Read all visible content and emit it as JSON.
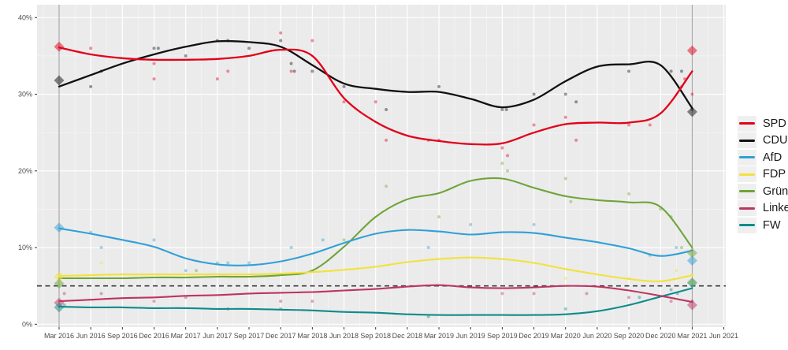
{
  "page": {
    "background": "#ffffff"
  },
  "chart_data": {
    "type": "line",
    "title": "",
    "xlabel": "",
    "ylabel": "",
    "grid": true,
    "panel_background": "#ebebeb",
    "major_grid_color": "#ffffff",
    "minor_grid_color": "#f4f4f4",
    "axis_text_color": "#4d4d4d",
    "legend_position": "right",
    "x_tick_labels": [
      "Mar 2016",
      "Jun 2016",
      "Sep 2016",
      "Dec 2016",
      "Mar 2017",
      "Jun 2017",
      "Sep 2017",
      "Dec 2017",
      "Mar 2018",
      "Jun 2018",
      "Sep 2018",
      "Dec 2018",
      "Mar 2019",
      "Jun 2019",
      "Sep 2019",
      "Dec 2019",
      "Mar 2020",
      "Jun 2020",
      "Sep 2020",
      "Dec 2020",
      "Mar 2021",
      "Jun 2021"
    ],
    "y_tick_labels": [
      "0%",
      "10%",
      "20%",
      "30%",
      "40%"
    ],
    "y_tick_values": [
      0,
      10,
      20,
      30,
      40
    ],
    "y_minor_values": [
      5,
      15,
      25,
      35
    ],
    "ylim": [
      0,
      42
    ],
    "xlim_months": [
      -2,
      63
    ],
    "threshold": {
      "value": 5,
      "meaning": "5% electoral threshold",
      "color": "#3c3c3c",
      "dashed": true
    },
    "election_date_lines": {
      "months": [
        0,
        60
      ],
      "color": "#9a9a9a"
    },
    "series_months": [
      0,
      3,
      6,
      9,
      12,
      15,
      18,
      21,
      24,
      27,
      30,
      33,
      36,
      39,
      42,
      45,
      48,
      51,
      54,
      57,
      60
    ],
    "series": [
      {
        "name": "SPD",
        "color": "#e2001a",
        "width": 2.3,
        "values": [
          36.1,
          35.2,
          34.7,
          34.5,
          34.5,
          34.6,
          35.0,
          35.8,
          35.0,
          29.5,
          26.4,
          24.6,
          23.9,
          23.5,
          23.6,
          25.0,
          26.1,
          26.3,
          26.3,
          27.5,
          33.0
        ]
      },
      {
        "name": "CDU",
        "color": "#111111",
        "width": 2.3,
        "values": [
          31.0,
          32.5,
          34.0,
          35.2,
          36.2,
          36.9,
          36.8,
          36.2,
          33.8,
          31.4,
          30.7,
          30.3,
          30.3,
          29.4,
          28.3,
          29.3,
          31.7,
          33.6,
          33.9,
          33.8,
          28.2
        ]
      },
      {
        "name": "AfD",
        "color": "#2fa0d8",
        "width": 2.1,
        "values": [
          12.5,
          11.8,
          11.0,
          10.1,
          8.6,
          7.8,
          7.7,
          8.2,
          9.2,
          10.6,
          11.8,
          12.3,
          12.1,
          11.7,
          12.0,
          11.9,
          11.3,
          10.7,
          9.9,
          8.9,
          9.6
        ]
      },
      {
        "name": "FDP",
        "color": "#f2e23c",
        "width": 2.1,
        "values": [
          6.3,
          6.4,
          6.5,
          6.5,
          6.5,
          6.5,
          6.5,
          6.6,
          6.8,
          7.1,
          7.5,
          8.1,
          8.5,
          8.7,
          8.5,
          8.0,
          7.2,
          6.5,
          5.9,
          5.6,
          6.4
        ]
      },
      {
        "name": "Grüne",
        "color": "#6fa43a",
        "width": 2.1,
        "values": [
          6.0,
          6.0,
          6.0,
          6.1,
          6.1,
          6.2,
          6.2,
          6.4,
          7.0,
          10.1,
          14.0,
          16.3,
          17.1,
          18.7,
          19.0,
          17.8,
          16.7,
          16.2,
          15.9,
          15.3,
          10.0
        ]
      },
      {
        "name": "Linke",
        "color": "#bd3462",
        "width": 2.1,
        "values": [
          3.0,
          3.2,
          3.4,
          3.5,
          3.7,
          3.8,
          4.0,
          4.1,
          4.2,
          4.4,
          4.6,
          4.9,
          5.1,
          4.8,
          4.7,
          4.8,
          5.0,
          4.9,
          4.4,
          3.7,
          2.9
        ]
      },
      {
        "name": "FW",
        "color": "#0f8b8b",
        "width": 2.1,
        "values": [
          2.3,
          2.2,
          2.2,
          2.1,
          2.1,
          2.0,
          2.0,
          1.9,
          1.8,
          1.6,
          1.5,
          1.3,
          1.2,
          1.2,
          1.2,
          1.2,
          1.3,
          1.7,
          2.5,
          3.6,
          4.7
        ]
      }
    ],
    "elections": [
      {
        "label": "Landtagswahl Mar 2016",
        "month": 0,
        "results": {
          "SPD": 36.2,
          "CDU": 31.8,
          "AfD": 12.6,
          "FDP": 6.2,
          "Grüne": 5.3,
          "Linke": 2.8,
          "FW": 2.2
        }
      },
      {
        "label": "Landtagswahl Mar 2021",
        "month": 60,
        "results": {
          "SPD": 35.7,
          "CDU": 27.7,
          "AfD": 8.3,
          "FDP": 5.5,
          "Grüne": 9.3,
          "Linke": 2.5,
          "FW": 5.4
        }
      }
    ],
    "polls": [
      {
        "party": "SPD",
        "month": 3,
        "value": 36
      },
      {
        "party": "SPD",
        "month": 9,
        "value": 34
      },
      {
        "party": "SPD",
        "month": 9,
        "value": 32
      },
      {
        "party": "SPD",
        "month": 15,
        "value": 32
      },
      {
        "party": "SPD",
        "month": 16,
        "value": 33
      },
      {
        "party": "SPD",
        "month": 21,
        "value": 38
      },
      {
        "party": "SPD",
        "month": 22,
        "value": 33
      },
      {
        "party": "SPD",
        "month": 24,
        "value": 37
      },
      {
        "party": "SPD",
        "month": 27,
        "value": 29
      },
      {
        "party": "SPD",
        "month": 30,
        "value": 29
      },
      {
        "party": "SPD",
        "month": 31,
        "value": 24
      },
      {
        "party": "SPD",
        "month": 35,
        "value": 24
      },
      {
        "party": "SPD",
        "month": 36,
        "value": 24
      },
      {
        "party": "SPD",
        "month": 42,
        "value": 23
      },
      {
        "party": "SPD",
        "month": 42.5,
        "value": 22
      },
      {
        "party": "SPD",
        "month": 45,
        "value": 26
      },
      {
        "party": "SPD",
        "month": 48,
        "value": 27
      },
      {
        "party": "SPD",
        "month": 49,
        "value": 24
      },
      {
        "party": "SPD",
        "month": 54,
        "value": 26
      },
      {
        "party": "SPD",
        "month": 56,
        "value": 26
      },
      {
        "party": "SPD",
        "month": 59,
        "value": 31
      },
      {
        "party": "SPD",
        "month": 59.3,
        "value": 32
      },
      {
        "party": "SPD",
        "month": 60,
        "value": 30
      },
      {
        "party": "CDU",
        "month": 3,
        "value": 31
      },
      {
        "party": "CDU",
        "month": 4,
        "value": 33
      },
      {
        "party": "CDU",
        "month": 9,
        "value": 36
      },
      {
        "party": "CDU",
        "month": 9.4,
        "value": 36
      },
      {
        "party": "CDU",
        "month": 12,
        "value": 35
      },
      {
        "party": "CDU",
        "month": 15,
        "value": 37
      },
      {
        "party": "CDU",
        "month": 16,
        "value": 37
      },
      {
        "party": "CDU",
        "month": 18,
        "value": 36
      },
      {
        "party": "CDU",
        "month": 21,
        "value": 37
      },
      {
        "party": "CDU",
        "month": 22,
        "value": 34
      },
      {
        "party": "CDU",
        "month": 22.3,
        "value": 33
      },
      {
        "party": "CDU",
        "month": 24,
        "value": 33
      },
      {
        "party": "CDU",
        "month": 27,
        "value": 31
      },
      {
        "party": "CDU",
        "month": 31,
        "value": 28
      },
      {
        "party": "CDU",
        "month": 36,
        "value": 31
      },
      {
        "party": "CDU",
        "month": 42,
        "value": 28
      },
      {
        "party": "CDU",
        "month": 42.4,
        "value": 28
      },
      {
        "party": "CDU",
        "month": 45,
        "value": 30
      },
      {
        "party": "CDU",
        "month": 48,
        "value": 30
      },
      {
        "party": "CDU",
        "month": 49,
        "value": 29
      },
      {
        "party": "CDU",
        "month": 54,
        "value": 33
      },
      {
        "party": "CDU",
        "month": 58,
        "value": 33
      },
      {
        "party": "CDU",
        "month": 59,
        "value": 33
      },
      {
        "party": "CDU",
        "month": 60,
        "value": 28
      },
      {
        "party": "AfD",
        "month": 3,
        "value": 12
      },
      {
        "party": "AfD",
        "month": 4,
        "value": 10
      },
      {
        "party": "AfD",
        "month": 9,
        "value": 11
      },
      {
        "party": "AfD",
        "month": 12,
        "value": 7
      },
      {
        "party": "AfD",
        "month": 15,
        "value": 8
      },
      {
        "party": "AfD",
        "month": 16,
        "value": 8
      },
      {
        "party": "AfD",
        "month": 18,
        "value": 8
      },
      {
        "party": "AfD",
        "month": 22,
        "value": 10
      },
      {
        "party": "AfD",
        "month": 25,
        "value": 11
      },
      {
        "party": "AfD",
        "month": 35,
        "value": 10
      },
      {
        "party": "AfD",
        "month": 39,
        "value": 13
      },
      {
        "party": "AfD",
        "month": 45,
        "value": 13
      },
      {
        "party": "AfD",
        "month": 56,
        "value": 9
      },
      {
        "party": "AfD",
        "month": 58.5,
        "value": 10
      },
      {
        "party": "FDP",
        "month": 4,
        "value": 8
      },
      {
        "party": "FDP",
        "month": 48,
        "value": 6
      },
      {
        "party": "FDP",
        "month": 54,
        "value": 6
      },
      {
        "party": "FDP",
        "month": 58.5,
        "value": 7
      },
      {
        "party": "FDP",
        "month": 60,
        "value": 6.5
      },
      {
        "party": "Grüne",
        "month": 13,
        "value": 7
      },
      {
        "party": "Grüne",
        "month": 27,
        "value": 11
      },
      {
        "party": "Grüne",
        "month": 31,
        "value": 18
      },
      {
        "party": "Grüne",
        "month": 36,
        "value": 14
      },
      {
        "party": "Grüne",
        "month": 42,
        "value": 21
      },
      {
        "party": "Grüne",
        "month": 42.5,
        "value": 20
      },
      {
        "party": "Grüne",
        "month": 48,
        "value": 19
      },
      {
        "party": "Grüne",
        "month": 48.5,
        "value": 16
      },
      {
        "party": "Grüne",
        "month": 54,
        "value": 17
      },
      {
        "party": "Grüne",
        "month": 57,
        "value": 15
      },
      {
        "party": "Grüne",
        "month": 58,
        "value": 14
      },
      {
        "party": "Grüne",
        "month": 59,
        "value": 10
      },
      {
        "party": "Linke",
        "month": 0.5,
        "value": 4
      },
      {
        "party": "Linke",
        "month": 4,
        "value": 4
      },
      {
        "party": "Linke",
        "month": 9,
        "value": 3
      },
      {
        "party": "Linke",
        "month": 12,
        "value": 3.5
      },
      {
        "party": "Linke",
        "month": 21,
        "value": 3
      },
      {
        "party": "Linke",
        "month": 24,
        "value": 3
      },
      {
        "party": "Linke",
        "month": 42,
        "value": 4
      },
      {
        "party": "Linke",
        "month": 45,
        "value": 4
      },
      {
        "party": "Linke",
        "month": 50,
        "value": 4
      },
      {
        "party": "Linke",
        "month": 54,
        "value": 3.5
      },
      {
        "party": "Linke",
        "month": 58,
        "value": 3
      },
      {
        "party": "Linke",
        "month": 60,
        "value": 3
      },
      {
        "party": "FW",
        "month": 0.5,
        "value": 2.5
      },
      {
        "party": "FW",
        "month": 16,
        "value": 2
      },
      {
        "party": "FW",
        "month": 21,
        "value": 2
      },
      {
        "party": "FW",
        "month": 35,
        "value": 1
      },
      {
        "party": "FW",
        "month": 48,
        "value": 2
      },
      {
        "party": "FW",
        "month": 55,
        "value": 3.5
      },
      {
        "party": "FW",
        "month": 58,
        "value": 4.5
      },
      {
        "party": "FW",
        "month": 58.6,
        "value": 4
      },
      {
        "party": "FW",
        "month": 60,
        "value": 5
      }
    ],
    "legend_entries": [
      "SPD",
      "CDU",
      "AfD",
      "FDP",
      "Grüne",
      "Linke",
      "FW"
    ]
  }
}
